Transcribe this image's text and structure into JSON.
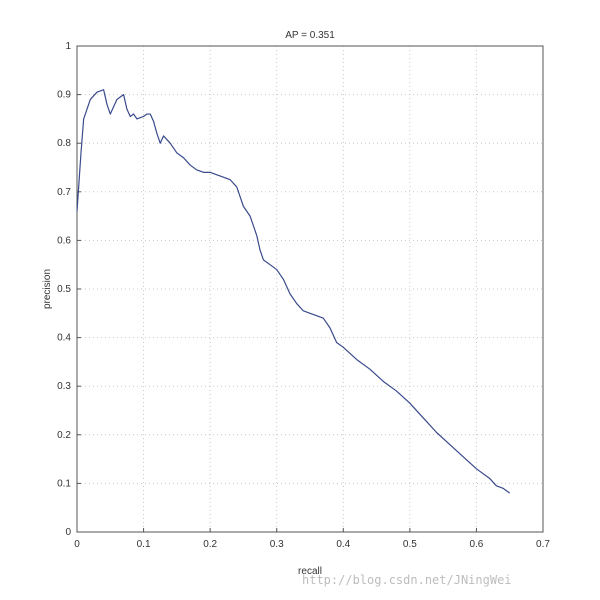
{
  "chart_data": {
    "type": "line",
    "title": "AP = 0.351",
    "xlabel": "recall",
    "ylabel": "precision",
    "xlim": [
      0,
      0.7
    ],
    "ylim": [
      0,
      1
    ],
    "x_ticks": [
      "0",
      "0.1",
      "0.2",
      "0.3",
      "0.4",
      "0.5",
      "0.6",
      "0.7"
    ],
    "y_ticks": [
      "0",
      "0.1",
      "0.2",
      "0.3",
      "0.4",
      "0.5",
      "0.6",
      "0.7",
      "0.8",
      "0.9",
      "1"
    ],
    "grid": true,
    "series": [
      {
        "color": "#3a4a8c",
        "points": [
          [
            0.0,
            0.66
          ],
          [
            0.003,
            0.72
          ],
          [
            0.006,
            0.78
          ],
          [
            0.01,
            0.85
          ],
          [
            0.015,
            0.87
          ],
          [
            0.02,
            0.89
          ],
          [
            0.03,
            0.905
          ],
          [
            0.04,
            0.91
          ],
          [
            0.045,
            0.88
          ],
          [
            0.05,
            0.86
          ],
          [
            0.055,
            0.875
          ],
          [
            0.06,
            0.89
          ],
          [
            0.065,
            0.895
          ],
          [
            0.07,
            0.9
          ],
          [
            0.075,
            0.87
          ],
          [
            0.08,
            0.855
          ],
          [
            0.085,
            0.86
          ],
          [
            0.09,
            0.85
          ],
          [
            0.1,
            0.855
          ],
          [
            0.105,
            0.86
          ],
          [
            0.11,
            0.86
          ],
          [
            0.115,
            0.845
          ],
          [
            0.12,
            0.82
          ],
          [
            0.125,
            0.8
          ],
          [
            0.13,
            0.815
          ],
          [
            0.14,
            0.8
          ],
          [
            0.15,
            0.78
          ],
          [
            0.16,
            0.77
          ],
          [
            0.17,
            0.755
          ],
          [
            0.18,
            0.745
          ],
          [
            0.19,
            0.74
          ],
          [
            0.2,
            0.74
          ],
          [
            0.21,
            0.735
          ],
          [
            0.22,
            0.73
          ],
          [
            0.23,
            0.725
          ],
          [
            0.24,
            0.71
          ],
          [
            0.25,
            0.67
          ],
          [
            0.26,
            0.65
          ],
          [
            0.27,
            0.61
          ],
          [
            0.275,
            0.58
          ],
          [
            0.28,
            0.56
          ],
          [
            0.29,
            0.55
          ],
          [
            0.3,
            0.54
          ],
          [
            0.31,
            0.52
          ],
          [
            0.32,
            0.49
          ],
          [
            0.33,
            0.47
          ],
          [
            0.34,
            0.455
          ],
          [
            0.35,
            0.45
          ],
          [
            0.36,
            0.445
          ],
          [
            0.37,
            0.44
          ],
          [
            0.38,
            0.42
          ],
          [
            0.39,
            0.39
          ],
          [
            0.4,
            0.38
          ],
          [
            0.42,
            0.355
          ],
          [
            0.44,
            0.335
          ],
          [
            0.46,
            0.31
          ],
          [
            0.48,
            0.29
          ],
          [
            0.5,
            0.265
          ],
          [
            0.52,
            0.235
          ],
          [
            0.54,
            0.205
          ],
          [
            0.56,
            0.18
          ],
          [
            0.58,
            0.155
          ],
          [
            0.6,
            0.13
          ],
          [
            0.62,
            0.11
          ],
          [
            0.63,
            0.095
          ],
          [
            0.64,
            0.09
          ],
          [
            0.65,
            0.08
          ]
        ]
      }
    ]
  },
  "watermark": "http://blog.csdn.net/JNingWei"
}
